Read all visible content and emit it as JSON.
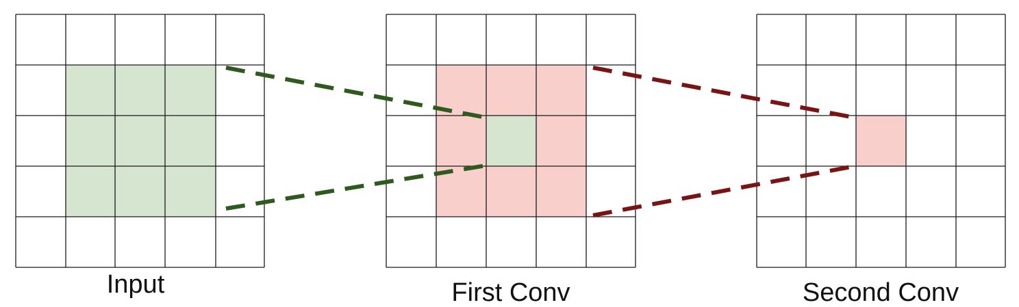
{
  "grids": [
    {
      "id": "input",
      "label": "Input",
      "rows": 5,
      "cols": 5,
      "highlight": {
        "row_start": 1,
        "row_end": 3,
        "col_start": 1,
        "col_end": 3,
        "color": "#d6e5d0"
      }
    },
    {
      "id": "first-conv",
      "label": "First Conv",
      "rows": 5,
      "cols": 5,
      "highlight": {
        "row_start": 1,
        "row_end": 3,
        "col_start": 1,
        "col_end": 3,
        "color": "#f9cfcc"
      },
      "inner_highlight": {
        "row": 2,
        "col": 2,
        "color": "#d6e5d0"
      }
    },
    {
      "id": "second-conv",
      "label": "Second Conv",
      "rows": 5,
      "cols": 5,
      "highlight": {
        "row_start": 2,
        "row_end": 2,
        "col_start": 2,
        "col_end": 2,
        "color": "#f9cfcc"
      }
    }
  ],
  "connectors": [
    {
      "id": "input-to-first",
      "color": "#2f5a1e",
      "style": "dashed"
    },
    {
      "id": "first-to-second",
      "color": "#7a1414",
      "style": "dashed"
    }
  ],
  "colors": {
    "grid_line": "#1a1a1a",
    "background": "#ffffff"
  }
}
